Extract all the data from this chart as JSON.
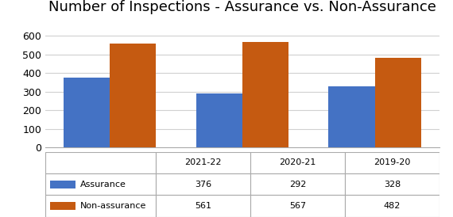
{
  "title": "Number of Inspections - Assurance vs. Non-Assurance",
  "categories": [
    "2021-22",
    "2020-21",
    "2019-20"
  ],
  "assurance": [
    376,
    292,
    328
  ],
  "non_assurance": [
    561,
    567,
    482
  ],
  "assurance_color": "#4472C4",
  "non_assurance_color": "#C55A11",
  "assurance_label": "Assurance",
  "non_assurance_label": "Non-assurance",
  "ylim": [
    0,
    700
  ],
  "yticks": [
    0,
    100,
    200,
    300,
    400,
    500,
    600
  ],
  "title_fontsize": 13,
  "tick_fontsize": 9,
  "table_fontsize": 8,
  "bar_width": 0.35,
  "background_color": "#ffffff",
  "grid_color": "#d0d0d0"
}
